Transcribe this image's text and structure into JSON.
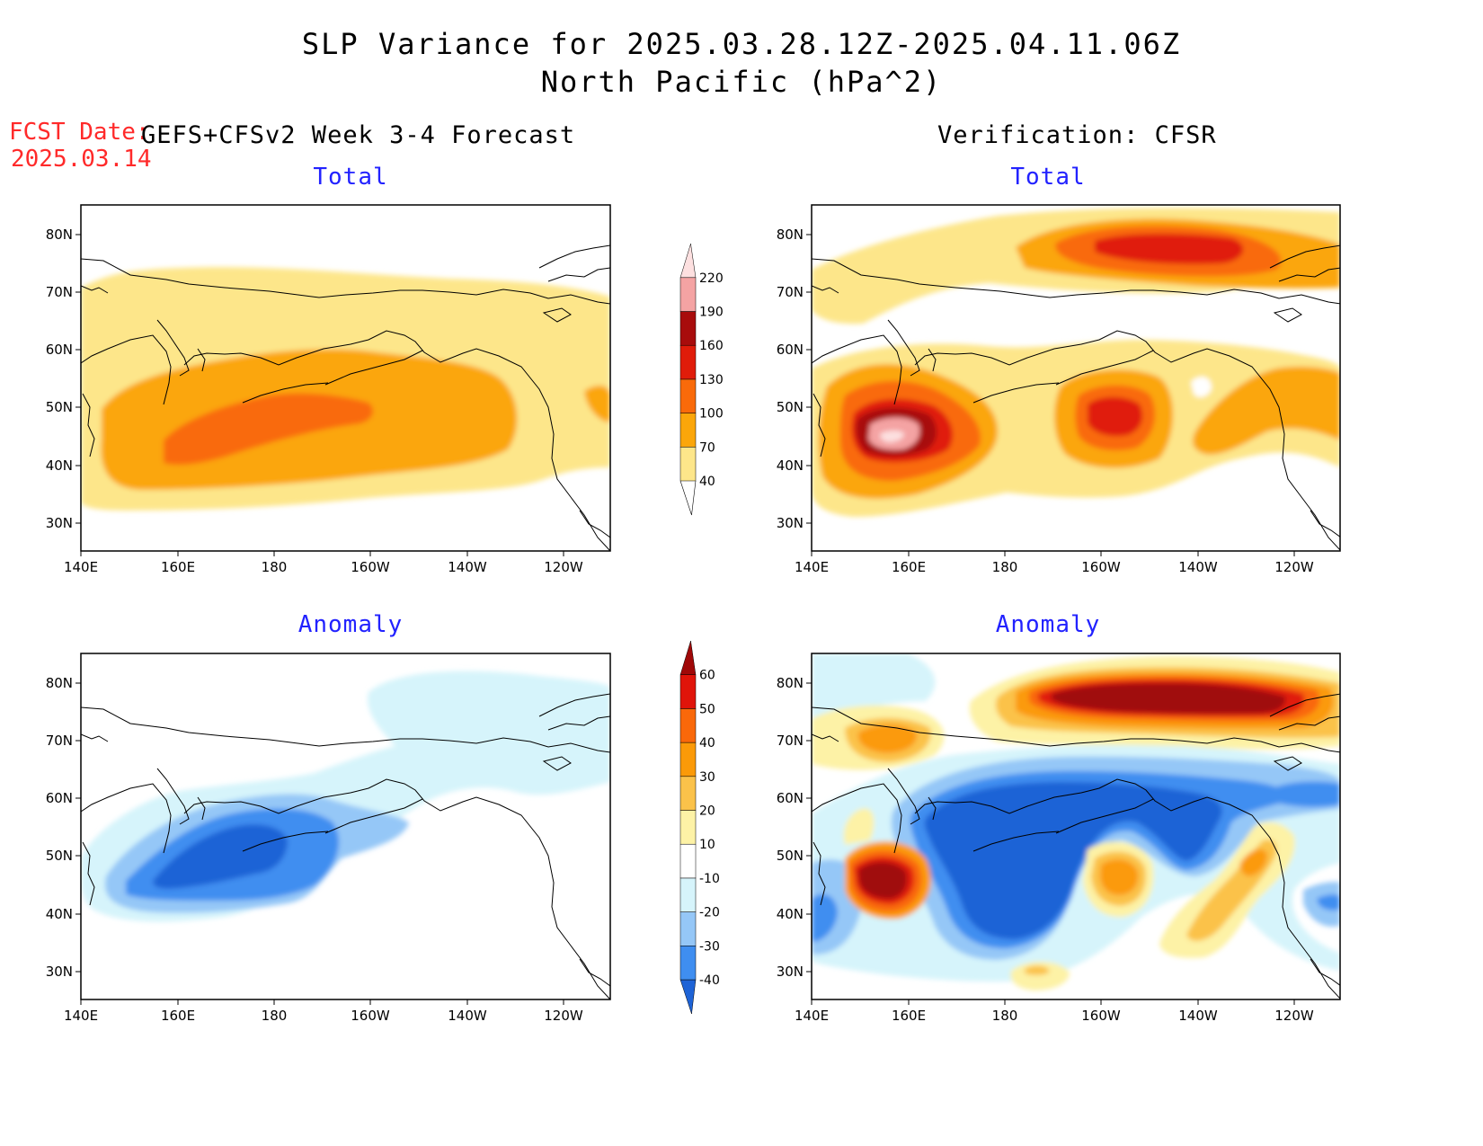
{
  "title": {
    "line1": "SLP Variance for 2025.03.28.12Z-2025.04.11.06Z",
    "line2": "North Pacific (hPa^2)"
  },
  "fcst": {
    "label": "FCST Date:",
    "date": "2025.03.14"
  },
  "headers": {
    "left": "GEFS+CFSv2 Week 3-4 Forecast",
    "right": "Verification: CFSR"
  },
  "panels": {
    "top_left": "Total",
    "top_right": "Total",
    "bottom_left": "Anomaly",
    "bottom_right": "Anomaly"
  },
  "axes": {
    "lat_labels": [
      "80N",
      "70N",
      "60N",
      "50N",
      "40N",
      "30N"
    ],
    "lon_labels": [
      "140E",
      "160E",
      "180",
      "160W",
      "140W",
      "120W"
    ]
  },
  "total_colorbar": {
    "levels": [
      "40",
      "70",
      "100",
      "130",
      "160",
      "190",
      "220"
    ],
    "colors": [
      "#fde68a",
      "#fba60a",
      "#f96a0a",
      "#e01c0a",
      "#a80c0c",
      "#f4a3a3",
      "#fde0e0"
    ]
  },
  "anomaly_colorbar": {
    "levels": [
      "-40",
      "-30",
      "-20",
      "-10",
      "10",
      "20",
      "30",
      "40",
      "50",
      "60"
    ],
    "colors": [
      "#1e63d6",
      "#3f8ef0",
      "#95c7f7",
      "#d6f4fb",
      "#ffffff",
      "#fdf2a6",
      "#fbc24a",
      "#fb9a08",
      "#f9680a",
      "#e0140a",
      "#a00808"
    ]
  }
}
